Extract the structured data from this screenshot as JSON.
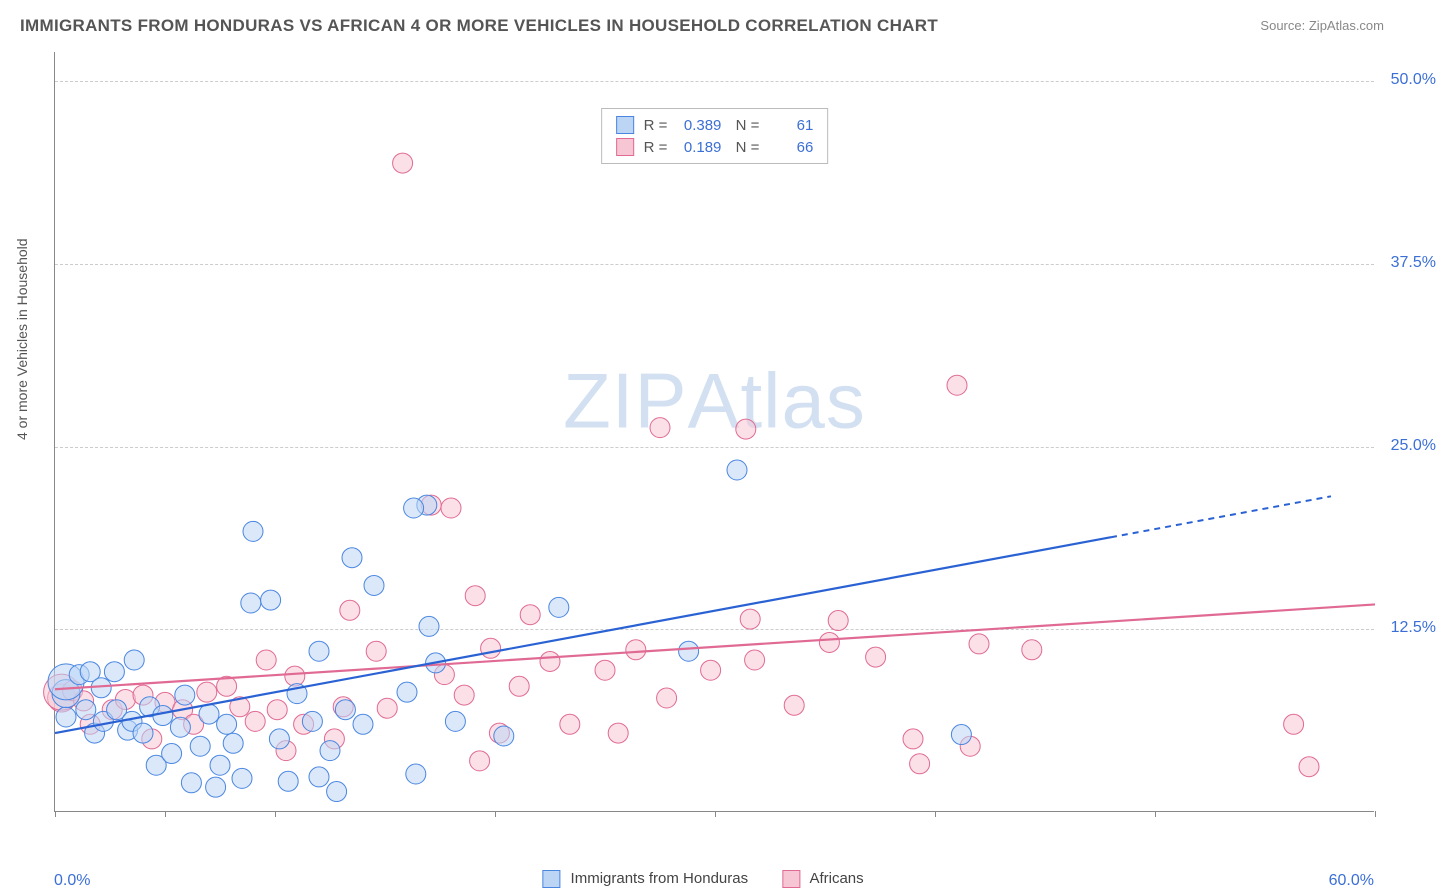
{
  "title": "IMMIGRANTS FROM HONDURAS VS AFRICAN 4 OR MORE VEHICLES IN HOUSEHOLD CORRELATION CHART",
  "source_label": "Source:",
  "source_site": "ZipAtlas.com",
  "watermark": "ZIPAtlas",
  "ylabel": "4 or more Vehicles in Household",
  "chart": {
    "type": "scatter",
    "xlim": [
      0,
      60
    ],
    "ylim": [
      0,
      52
    ],
    "x_tick_labels": {
      "min": "0.0%",
      "max": "60.0%"
    },
    "x_tick_marks": [
      0,
      5,
      10,
      20,
      30,
      40,
      50,
      60
    ],
    "y_ticks": [
      12.5,
      25.0,
      37.5,
      50.0
    ],
    "y_tick_labels": [
      "12.5%",
      "25.0%",
      "37.5%",
      "50.0%"
    ],
    "grid_color": "#cccccc",
    "background_color": "#ffffff",
    "axis_color": "#888888",
    "value_color": "#3b6fd6",
    "marker_radius": 10,
    "large_marker_radius_levels": [
      10,
      14,
      18
    ],
    "series": {
      "blue": {
        "label": "Immigrants from Honduras",
        "R": "0.389",
        "N": "61",
        "fill": "#bcd5f5",
        "stroke": "#4a86e0",
        "trend": {
          "x1": 0,
          "y1": 5.4,
          "x2": 48,
          "y2": 18.8,
          "dash_from_x": 48,
          "dash_to_x": 58,
          "dash_to_y": 21.6,
          "color": "#2a62d4"
        },
        "points": [
          [
            0.5,
            6.5,
            0
          ],
          [
            0.5,
            8.1,
            1
          ],
          [
            0.5,
            8.9,
            2
          ],
          [
            1.1,
            9.4,
            0
          ],
          [
            1.4,
            7.0,
            0
          ],
          [
            1.6,
            9.6,
            0
          ],
          [
            1.8,
            5.4,
            0
          ],
          [
            2.1,
            8.5,
            0
          ],
          [
            2.2,
            6.2,
            0
          ],
          [
            2.7,
            9.6,
            0
          ],
          [
            2.8,
            7.0,
            0
          ],
          [
            3.3,
            5.6,
            0
          ],
          [
            3.5,
            6.2,
            0
          ],
          [
            3.6,
            10.4,
            0
          ],
          [
            4.0,
            5.4,
            0
          ],
          [
            4.3,
            7.2,
            0
          ],
          [
            4.6,
            3.2,
            0
          ],
          [
            4.9,
            6.6,
            0
          ],
          [
            5.3,
            4.0,
            0
          ],
          [
            5.7,
            5.8,
            0
          ],
          [
            5.9,
            8.0,
            0
          ],
          [
            6.2,
            2.0,
            0
          ],
          [
            6.6,
            4.5,
            0
          ],
          [
            7.0,
            6.7,
            0
          ],
          [
            7.3,
            1.7,
            0
          ],
          [
            7.5,
            3.2,
            0
          ],
          [
            7.8,
            6.0,
            0
          ],
          [
            8.1,
            4.7,
            0
          ],
          [
            8.5,
            2.3,
            0
          ],
          [
            9.0,
            19.2,
            0
          ],
          [
            9.8,
            14.5,
            0
          ],
          [
            8.9,
            14.3,
            0
          ],
          [
            10.2,
            5.0,
            0
          ],
          [
            10.6,
            2.1,
            0
          ],
          [
            11.0,
            8.1,
            0
          ],
          [
            11.7,
            6.2,
            0
          ],
          [
            12.0,
            11.0,
            0
          ],
          [
            12.0,
            2.4,
            0
          ],
          [
            12.5,
            4.2,
            0
          ],
          [
            12.8,
            1.4,
            0
          ],
          [
            13.2,
            7.0,
            0
          ],
          [
            13.5,
            17.4,
            0
          ],
          [
            14.0,
            6.0,
            0
          ],
          [
            14.5,
            15.5,
            0
          ],
          [
            16.0,
            8.2,
            0
          ],
          [
            16.4,
            2.6,
            0
          ],
          [
            16.9,
            21.0,
            0
          ],
          [
            17.0,
            12.7,
            0
          ],
          [
            16.3,
            20.8,
            0
          ],
          [
            17.3,
            10.2,
            0
          ],
          [
            18.2,
            6.2,
            0
          ],
          [
            20.4,
            5.2,
            0
          ],
          [
            22.9,
            14.0,
            0
          ],
          [
            28.8,
            11.0,
            0
          ],
          [
            31.0,
            23.4,
            0
          ],
          [
            41.2,
            5.3,
            0
          ]
        ]
      },
      "pink": {
        "label": "Africans",
        "R": "0.189",
        "N": "66",
        "fill": "#f7c6d4",
        "stroke": "#e06a93",
        "trend": {
          "x1": 0,
          "y1": 8.4,
          "x2": 60,
          "y2": 14.2,
          "color": "#e06a93"
        },
        "points": [
          [
            0.3,
            7.8,
            1
          ],
          [
            0.3,
            8.2,
            2
          ],
          [
            0.8,
            8.3,
            0
          ],
          [
            1.3,
            7.6,
            0
          ],
          [
            1.6,
            6.0,
            0
          ],
          [
            2.6,
            7.0,
            0
          ],
          [
            3.2,
            7.7,
            0
          ],
          [
            4.0,
            8.0,
            0
          ],
          [
            4.4,
            5.0,
            0
          ],
          [
            5.0,
            7.5,
            0
          ],
          [
            5.8,
            7.0,
            0
          ],
          [
            6.3,
            6.0,
            0
          ],
          [
            6.9,
            8.2,
            0
          ],
          [
            7.8,
            8.6,
            0
          ],
          [
            8.4,
            7.2,
            0
          ],
          [
            9.1,
            6.2,
            0
          ],
          [
            9.6,
            10.4,
            0
          ],
          [
            10.1,
            7.0,
            0
          ],
          [
            10.5,
            4.2,
            0
          ],
          [
            10.9,
            9.3,
            0
          ],
          [
            11.3,
            6.0,
            0
          ],
          [
            12.7,
            5.0,
            0
          ],
          [
            13.1,
            7.2,
            0
          ],
          [
            13.4,
            13.8,
            0
          ],
          [
            14.6,
            11.0,
            0
          ],
          [
            15.1,
            7.1,
            0
          ],
          [
            15.8,
            44.4,
            0
          ],
          [
            17.1,
            21.0,
            0
          ],
          [
            17.7,
            9.4,
            0
          ],
          [
            18.0,
            20.8,
            0
          ],
          [
            18.6,
            8.0,
            0
          ],
          [
            19.1,
            14.8,
            0
          ],
          [
            19.8,
            11.2,
            0
          ],
          [
            20.2,
            5.4,
            0
          ],
          [
            21.6,
            13.5,
            0
          ],
          [
            21.1,
            8.6,
            0
          ],
          [
            22.5,
            10.3,
            0
          ],
          [
            23.4,
            6.0,
            0
          ],
          [
            19.3,
            3.5,
            0
          ],
          [
            25.0,
            9.7,
            0
          ],
          [
            25.6,
            5.4,
            0
          ],
          [
            26.4,
            11.1,
            0
          ],
          [
            27.5,
            26.3,
            0
          ],
          [
            27.8,
            7.8,
            0
          ],
          [
            29.8,
            9.7,
            0
          ],
          [
            31.4,
            26.2,
            0
          ],
          [
            31.6,
            13.2,
            0
          ],
          [
            31.8,
            10.4,
            0
          ],
          [
            33.6,
            7.3,
            0
          ],
          [
            35.2,
            11.6,
            0
          ],
          [
            35.6,
            13.1,
            0
          ],
          [
            37.3,
            10.6,
            0
          ],
          [
            39.0,
            5.0,
            0
          ],
          [
            39.3,
            3.3,
            0
          ],
          [
            41.0,
            29.2,
            0
          ],
          [
            41.6,
            4.5,
            0
          ],
          [
            42.0,
            11.5,
            0
          ],
          [
            44.4,
            11.1,
            0
          ],
          [
            56.3,
            6.0,
            0
          ],
          [
            57.0,
            3.1,
            0
          ]
        ]
      }
    }
  }
}
